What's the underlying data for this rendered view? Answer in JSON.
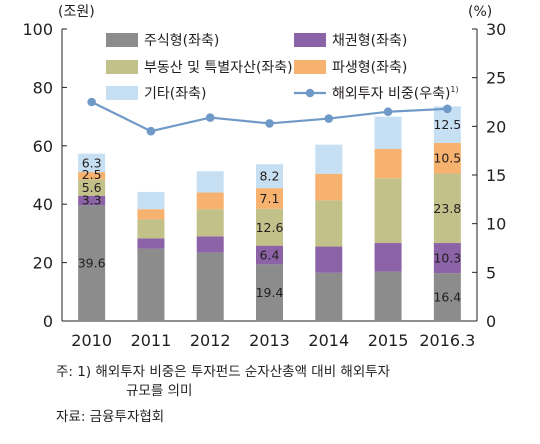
{
  "chart_data": {
    "type": "bar",
    "stacked": true,
    "categories": [
      "2010",
      "2011",
      "2012",
      "2013",
      "2014",
      "2015",
      "2016.3"
    ],
    "left_axis": {
      "unit": "(조원)",
      "ylim": [
        0,
        100
      ],
      "ticks": [
        "0",
        "20",
        "40",
        "60",
        "80",
        "100"
      ]
    },
    "right_axis": {
      "unit": "(%)",
      "ylim": [
        0,
        30
      ],
      "ticks": [
        "0",
        "5",
        "10",
        "15",
        "20",
        "25",
        "30"
      ]
    },
    "grid": false,
    "legend_position": "top",
    "series": [
      {
        "name": "주식형(좌축)",
        "color": "#8c8c8c",
        "axis": "left",
        "values": [
          39.6,
          24.8,
          23.4,
          19.4,
          16.5,
          16.9,
          16.4
        ],
        "labels": [
          "39.6",
          "",
          "",
          "19.4",
          "",
          "",
          "16.4"
        ]
      },
      {
        "name": "채권형(좌축)",
        "color": "#8b63a6",
        "axis": "left",
        "values": [
          3.3,
          3.5,
          5.6,
          6.4,
          9.0,
          9.8,
          10.3
        ],
        "labels": [
          "3.3",
          "",
          "",
          "6.4",
          "",
          "",
          "10.3"
        ]
      },
      {
        "name": "부동산 및 특별자산(좌축)",
        "color": "#c2c189",
        "axis": "left",
        "values": [
          5.6,
          6.5,
          9.3,
          12.6,
          15.8,
          22.2,
          23.8
        ],
        "labels": [
          "5.6",
          "",
          "",
          "12.6",
          "",
          "",
          "23.8"
        ]
      },
      {
        "name": "파생형(좌축)",
        "color": "#f8b26f",
        "axis": "left",
        "values": [
          2.5,
          3.5,
          5.7,
          7.1,
          9.1,
          10.0,
          10.5
        ],
        "labels": [
          "2.5",
          "",
          "",
          "7.1",
          "",
          "",
          "10.5"
        ]
      },
      {
        "name": "기타(좌축)",
        "color": "#c6dff2",
        "axis": "left",
        "values": [
          6.3,
          5.9,
          7.3,
          8.2,
          10.0,
          11.1,
          12.5
        ],
        "labels": [
          "6.3",
          "",
          "",
          "8.2",
          "",
          "",
          "12.5"
        ]
      },
      {
        "name": "해외투자 비중(우축)",
        "superscript": "1)",
        "color": "#6f9ac7",
        "axis": "right",
        "kind": "line",
        "values": [
          22.5,
          19.5,
          20.9,
          20.3,
          20.8,
          21.5,
          21.8
        ]
      }
    ]
  },
  "footnote": {
    "line1": "주: 1) 해외투자 비중은 투자펀드 순자산총액 대비 해외투자",
    "line2": "규모를 의미"
  },
  "source": "자료: 금융투자협회"
}
